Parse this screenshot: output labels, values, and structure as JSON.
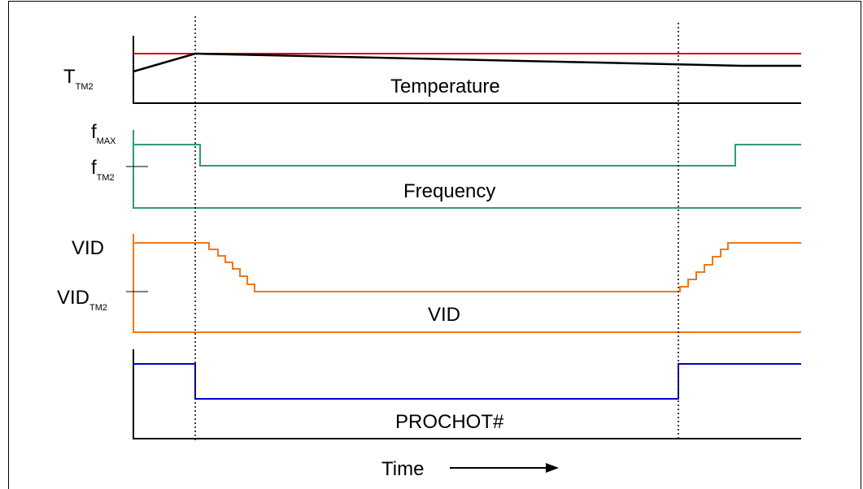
{
  "labels": {
    "t_tm2_main": "T",
    "t_tm2_sub": "TM2",
    "f_max_main": "f",
    "f_max_sub": "MAX",
    "f_tm2_main": "f",
    "f_tm2_sub": "TM2",
    "vid_axis": "VID",
    "vid_tm2_main": "VID",
    "vid_tm2_sub": "TM2"
  },
  "signals": {
    "temperature": "Temperature",
    "frequency": "Frequency",
    "vid": "VID",
    "prochot": "PROCHOT#"
  },
  "time_label": "Time",
  "colors": {
    "threshold": "#e00000",
    "temperature": "#000000",
    "frequency": "#2e9e6e",
    "vid": "#f07818",
    "prochot": "#0000cc"
  }
}
